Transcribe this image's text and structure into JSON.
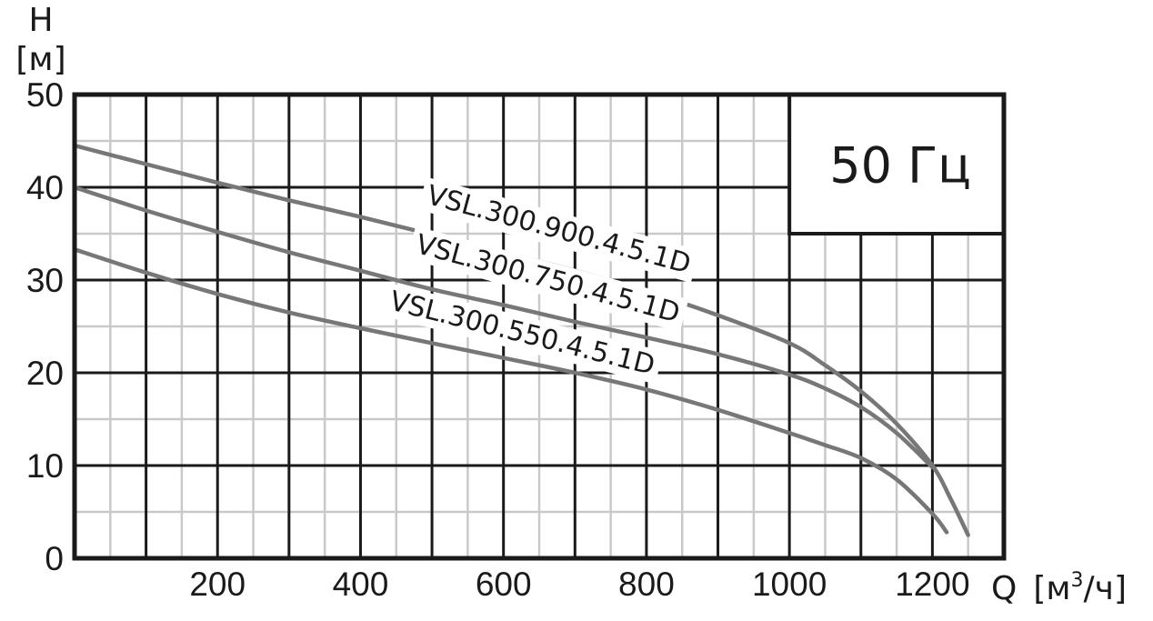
{
  "chart_data": {
    "type": "line",
    "ylabel_symbol": "H",
    "ylabel_unit": "[м]",
    "xlabel_symbol": "Q",
    "xlabel_unit_pre": "[м",
    "xlabel_unit_sup": "3",
    "xlabel_unit_post": "/ч]",
    "annotation": "50 Гц",
    "xlim": [
      0,
      1300
    ],
    "ylim": [
      0,
      50
    ],
    "x_ticks": [
      200,
      400,
      600,
      800,
      1000,
      1200
    ],
    "y_ticks": [
      0,
      10,
      20,
      30,
      40,
      50
    ],
    "series": [
      {
        "name": "VSL.300.900.4.5.1D",
        "x": [
          0,
          100,
          200,
          300,
          400,
          500,
          600,
          700,
          800,
          900,
          1000,
          1050,
          1100,
          1150,
          1200,
          1225,
          1250
        ],
        "y": [
          44.5,
          42.5,
          40.5,
          38.6,
          36.8,
          34.9,
          33.0,
          31.0,
          28.8,
          26.2,
          23.2,
          20.8,
          18.0,
          14.5,
          10.0,
          6.5,
          2.5
        ]
      },
      {
        "name": "VSL.300.750.4.5.1D",
        "x": [
          0,
          100,
          200,
          300,
          400,
          500,
          600,
          700,
          800,
          900,
          1000,
          1050,
          1100,
          1150,
          1200
        ],
        "y": [
          40.0,
          37.5,
          35.2,
          33.0,
          31.0,
          29.0,
          27.3,
          25.5,
          23.8,
          22.0,
          19.8,
          18.3,
          16.3,
          13.5,
          9.8
        ]
      },
      {
        "name": "VSL.300.550.4.5.1D",
        "x": [
          0,
          100,
          200,
          300,
          400,
          500,
          600,
          700,
          800,
          900,
          1000,
          1050,
          1100,
          1150,
          1200,
          1220
        ],
        "y": [
          33.3,
          30.8,
          28.5,
          26.5,
          24.8,
          23.2,
          21.6,
          20.0,
          18.2,
          16.0,
          13.5,
          12.2,
          10.8,
          8.5,
          4.8,
          2.8
        ]
      }
    ]
  }
}
